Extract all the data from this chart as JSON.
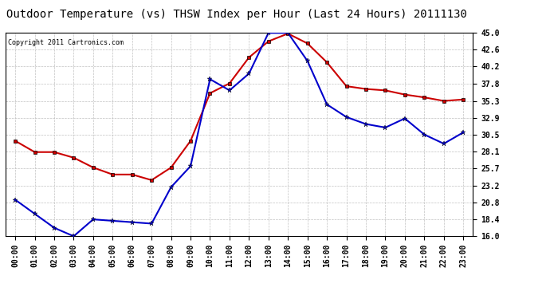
{
  "title": "Outdoor Temperature (vs) THSW Index per Hour (Last 24 Hours) 20111130",
  "copyright": "Copyright 2011 Cartronics.com",
  "hours": [
    "00:00",
    "01:00",
    "02:00",
    "03:00",
    "04:00",
    "05:00",
    "06:00",
    "07:00",
    "08:00",
    "09:00",
    "10:00",
    "11:00",
    "12:00",
    "13:00",
    "14:00",
    "15:00",
    "16:00",
    "17:00",
    "18:00",
    "19:00",
    "20:00",
    "21:00",
    "22:00",
    "23:00"
  ],
  "temp_blue": [
    21.2,
    19.2,
    17.2,
    16.0,
    18.4,
    18.2,
    18.0,
    17.8,
    23.0,
    26.0,
    38.4,
    36.8,
    39.2,
    45.0,
    45.0,
    41.0,
    34.8,
    33.0,
    32.0,
    31.5,
    32.8,
    30.5,
    29.2,
    30.8
  ],
  "thsw_red": [
    29.6,
    28.0,
    28.0,
    27.2,
    25.8,
    24.8,
    24.8,
    24.0,
    25.8,
    29.6,
    36.4,
    37.8,
    41.5,
    43.8,
    44.9,
    43.5,
    40.8,
    37.4,
    37.0,
    36.8,
    36.2,
    35.8,
    35.3,
    35.5
  ],
  "ymin": 16.0,
  "ymax": 45.0,
  "yticks": [
    16.0,
    18.4,
    20.8,
    23.2,
    25.7,
    28.1,
    30.5,
    32.9,
    35.3,
    37.8,
    40.2,
    42.6,
    45.0
  ],
  "blue_color": "#0000cc",
  "red_color": "#cc0000",
  "bg_color": "#ffffff",
  "grid_color": "#bbbbbb",
  "title_fontsize": 10,
  "tick_fontsize": 7,
  "copyright_fontsize": 6
}
